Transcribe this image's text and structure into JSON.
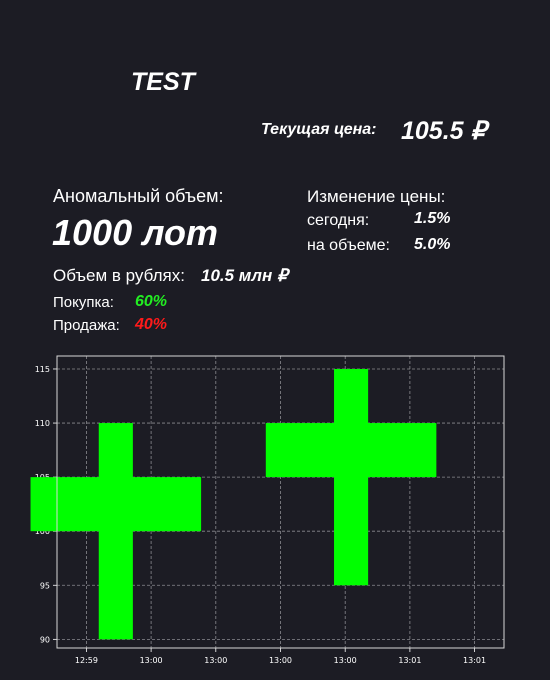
{
  "header": {
    "ticker": "TEST",
    "current_price_label": "Текущая цена:",
    "current_price_value": "105.5 ₽"
  },
  "volume": {
    "anomaly_label": "Аномальный объем:",
    "anomaly_value": "1000 лот",
    "rub_label": "Объем в рублях:",
    "rub_value": "10.5 млн ₽",
    "buy_label": "Покупка:",
    "buy_value": "60%",
    "sell_label": "Продажа:",
    "sell_value": "40%"
  },
  "price_change": {
    "label": "Изменение цены:",
    "today_label": "сегодня:",
    "today_value": "1.5%",
    "volume_label": "на объеме:",
    "volume_value": "5.0%"
  },
  "colors": {
    "background": "#1c1c24",
    "candle": "#00ff00",
    "buy": "#22ee22",
    "sell": "#ff1a1a",
    "grid": "#8a8a90"
  },
  "chart_data": {
    "type": "candlestick",
    "x_tick_labels": [
      "12:59",
      "13:00",
      "13:00",
      "13:00",
      "13:00",
      "13:01",
      "13:01"
    ],
    "y_ticks": [
      90,
      95,
      100,
      105,
      110,
      115
    ],
    "ylim": [
      89.2,
      116.2
    ],
    "grid": true,
    "candles": [
      {
        "position": 0.5,
        "open": 100,
        "close": 105,
        "low": 90,
        "high": 110,
        "width": 1.45
      },
      {
        "position": 2.5,
        "open": 105,
        "close": 110,
        "low": 95,
        "high": 115,
        "width": 1.45
      }
    ],
    "x_range": [
      0,
      3.8
    ]
  }
}
